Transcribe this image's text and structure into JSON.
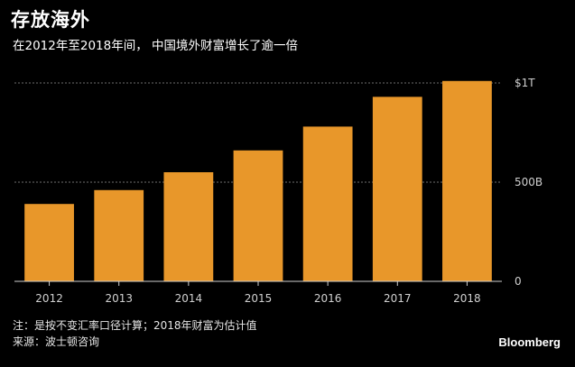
{
  "header": {
    "title": "存放海外",
    "subtitle": "在2012年至2018年间， 中国境外财富增长了逾一倍"
  },
  "footer": {
    "note": "注：是按不变汇率口径计算；2018年财富为估计值",
    "source": "来源：波士顿咨询",
    "brand": "Bloomberg"
  },
  "colors": {
    "bar": "#E8972A",
    "grid": "#6e6e6e",
    "axis": "#d0d0d0",
    "text": "#ffffff"
  },
  "chart_data": {
    "type": "bar",
    "title": "存放海外",
    "subtitle": "在2012年至2018年间， 中国境外财富增长了逾一倍",
    "xlabel": "",
    "ylabel": "",
    "categories": [
      "2012",
      "2013",
      "2014",
      "2015",
      "2016",
      "2017",
      "2018"
    ],
    "values": [
      390,
      460,
      550,
      660,
      780,
      930,
      1010
    ],
    "units": "十亿美元",
    "ylim": [
      0,
      1000
    ],
    "yticks": [
      {
        "value": 0,
        "label": "0"
      },
      {
        "value": 500,
        "label": "500B"
      },
      {
        "value": 1000,
        "label": "$1T"
      }
    ],
    "grid": true,
    "yaxis_position": "right"
  }
}
